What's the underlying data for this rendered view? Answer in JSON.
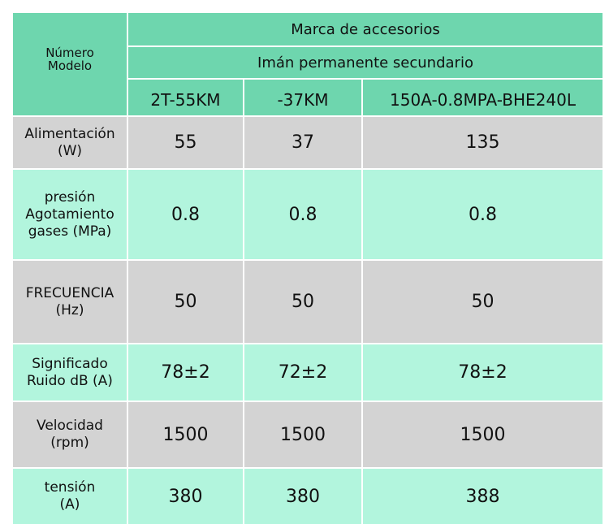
{
  "header": {
    "corner_label_line1": "Número",
    "corner_label_line2": "Modelo",
    "brand_label": "Marca de accesorios",
    "magnet_label": "Imán permanente secundario",
    "models": [
      "2T-55KM",
      "-37KM",
      "150A-0.8MPA-BHE240L"
    ]
  },
  "rows": [
    {
      "label_lines": [
        "Alimentación",
        "(W)"
      ],
      "values": [
        "55",
        "37",
        "135"
      ]
    },
    {
      "label_lines": [
        "presión",
        "Agotamiento",
        "gases (MPa)"
      ],
      "values": [
        "0.8",
        "0.8",
        "0.8"
      ]
    },
    {
      "label_lines": [
        "FRECUENCIA",
        "(Hz)"
      ],
      "values": [
        "50",
        "50",
        "50"
      ]
    },
    {
      "label_lines": [
        "Significado",
        "Ruido dB (A)"
      ],
      "values": [
        "78±2",
        "72±2",
        "78±2"
      ]
    },
    {
      "label_lines": [
        "Velocidad",
        "(rpm)"
      ],
      "values": [
        "1500",
        "1500",
        "1500"
      ]
    },
    {
      "label_lines": [
        "tensión",
        "(A)"
      ],
      "values": [
        "380",
        "380",
        "388"
      ]
    }
  ],
  "colors": {
    "header_bg": "#6ed6ae",
    "gray_row_bg": "#d3d3d3",
    "mint_row_bg": "#b2f5dd"
  }
}
